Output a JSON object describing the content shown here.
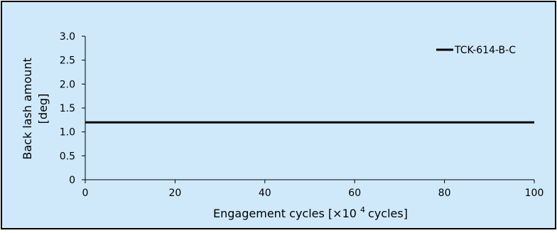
{
  "chart_data": {
    "type": "line",
    "xlabel": "Engagement cycles [×10 4 cycles]",
    "xlabel_parts": {
      "prefix": "Engagement cycles [",
      "times": "×",
      "base": "10 ",
      "exponent": "4",
      "suffix": "cycles]"
    },
    "ylabel_line1": "Back lash amount",
    "ylabel_line2": "[deg]",
    "xlim": [
      0,
      100
    ],
    "ylim": [
      0,
      3.0
    ],
    "x_ticks": [
      0,
      20,
      40,
      60,
      80,
      100
    ],
    "x_tick_labels": [
      "0",
      "20",
      "40",
      "60",
      "80",
      "100"
    ],
    "y_ticks": [
      0,
      0.5,
      1.0,
      1.5,
      2.0,
      2.5,
      3.0
    ],
    "y_tick_labels": [
      "0",
      "0.5",
      "1.0",
      "1.5",
      "2.0",
      "2.5",
      "3.0"
    ],
    "grid": false,
    "legend_position": "top-right",
    "series": [
      {
        "name": "TCK-614-B-C",
        "x": [
          0,
          100
        ],
        "y": [
          1.2,
          1.2
        ],
        "color": "#000000"
      }
    ],
    "colors": {
      "background": "#cfe9fb",
      "border": "#000000",
      "axis": "#000000"
    }
  }
}
